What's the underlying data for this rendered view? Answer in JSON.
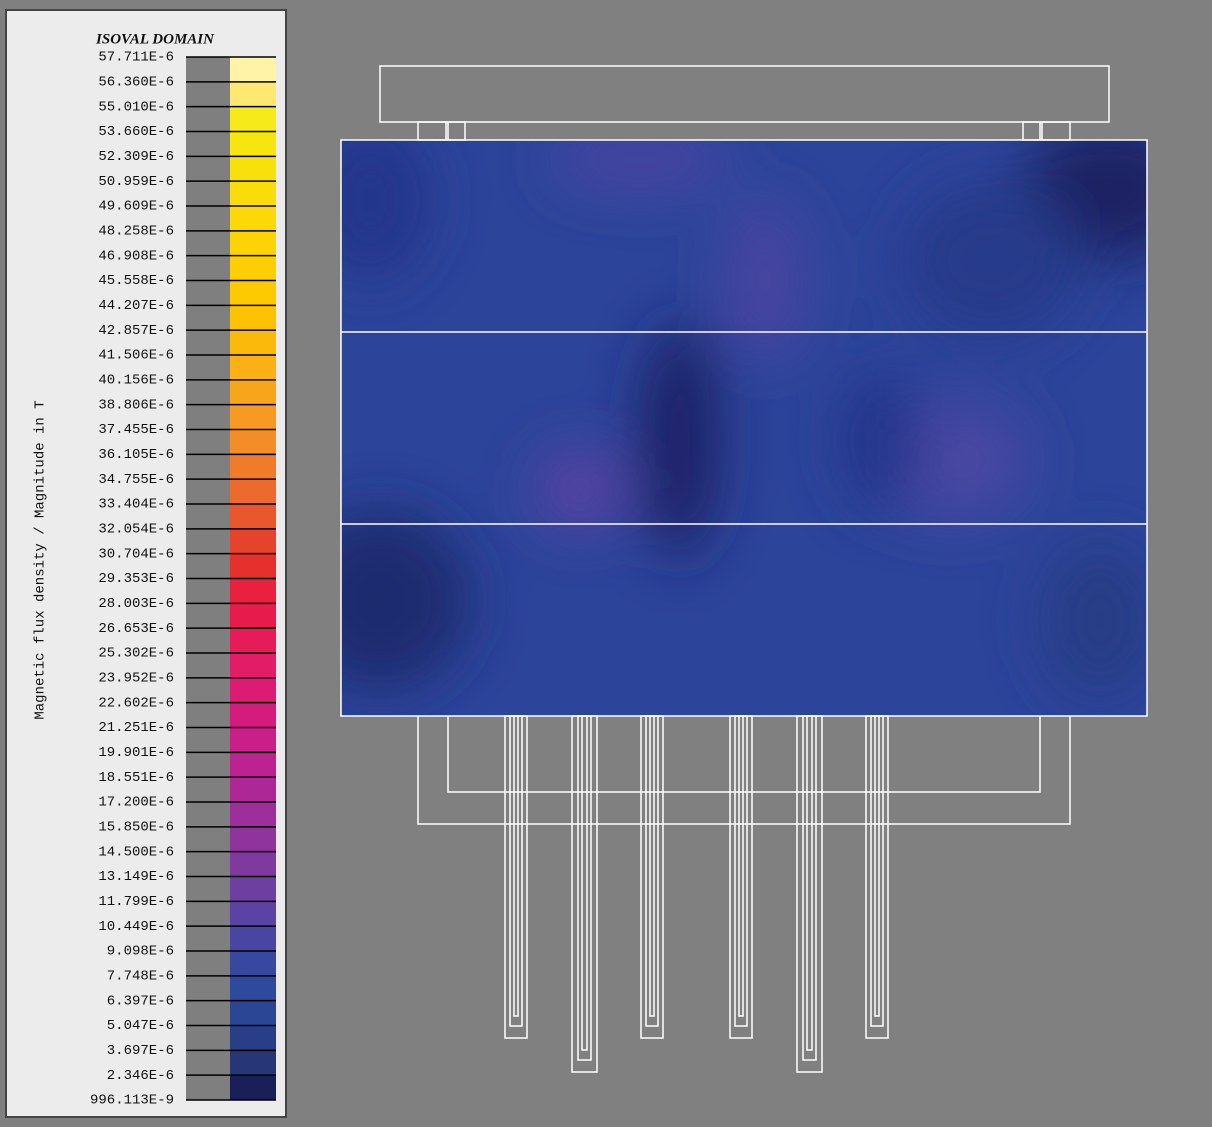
{
  "legend": {
    "title": "ISOVAL DOMAIN",
    "quantity_label": "Magnetic flux density / Magnitude in T",
    "levels": [
      "57.711E-6",
      "56.360E-6",
      "55.010E-6",
      "53.660E-6",
      "52.309E-6",
      "50.959E-6",
      "49.609E-6",
      "48.258E-6",
      "46.908E-6",
      "45.558E-6",
      "44.207E-6",
      "42.857E-6",
      "41.506E-6",
      "40.156E-6",
      "38.806E-6",
      "37.455E-6",
      "36.105E-6",
      "34.755E-6",
      "33.404E-6",
      "32.054E-6",
      "30.704E-6",
      "29.353E-6",
      "28.003E-6",
      "26.653E-6",
      "25.302E-6",
      "23.952E-6",
      "22.602E-6",
      "21.251E-6",
      "19.901E-6",
      "18.551E-6",
      "17.200E-6",
      "15.850E-6",
      "14.500E-6",
      "13.149E-6",
      "11.799E-6",
      "10.449E-6",
      "9.098E-6",
      "7.748E-6",
      "6.397E-6",
      "5.047E-6",
      "3.697E-6",
      "2.346E-6",
      "996.113E-9"
    ],
    "band_colors": [
      "#fff3a8",
      "#fde872",
      "#f7ea1a",
      "#f7e50e",
      "#f8e00a",
      "#fadc08",
      "#fbd806",
      "#fcd304",
      "#fdcf02",
      "#fdca00",
      "#fdc300",
      "#fbb90c",
      "#fbb014",
      "#f9a51c",
      "#f79a22",
      "#f48c28",
      "#f07c2a",
      "#ec6a2c",
      "#e9582c",
      "#e5432c",
      "#e5302e",
      "#e8213e",
      "#e81c4c",
      "#e61c5a",
      "#e21c66",
      "#dc1c72",
      "#d41c7e",
      "#ca1e88",
      "#bc2290",
      "#ad2896",
      "#9e2e9a",
      "#8e349c",
      "#7e3a9e",
      "#6c3fa0",
      "#5a43a2",
      "#4846a2",
      "#3848a0",
      "#2e4a9c",
      "#2a4694",
      "#283e86",
      "#263676",
      "#1a1f58"
    ]
  }
}
